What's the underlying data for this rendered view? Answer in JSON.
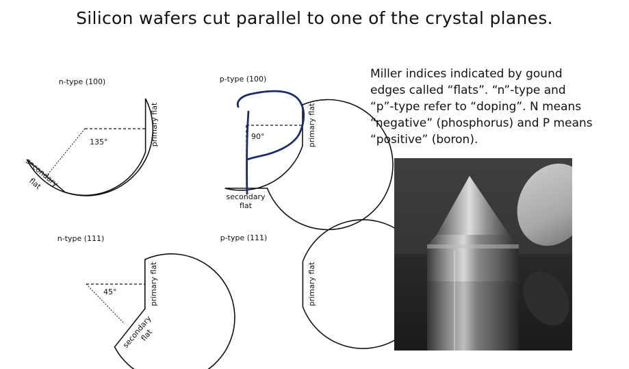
{
  "slide": {
    "title": "Silicon wafers cut parallel to one of the crystal planes.",
    "description": [
      "Miller indices indicated by gound",
      "edges called “flats”.  “n”-type and",
      "“p”-type refer to “doping”. N means",
      "“negative” (phosphorus) and P means",
      "“positive” (boron)."
    ]
  },
  "wafers": [
    {
      "label": "n-type (100)",
      "primary_flat": "primary flat",
      "secondary_flat": [
        "secondary",
        "flat"
      ],
      "angle": "135°"
    },
    {
      "label": "p-type (100)",
      "primary_flat": "primary flat",
      "secondary_flat": [
        "secondary",
        "flat"
      ],
      "angle": "90°"
    },
    {
      "label": "n-type (111)",
      "primary_flat": "primary flat",
      "secondary_flat": [
        "secondary",
        "flat"
      ],
      "angle": "45°"
    },
    {
      "label": "p-type (111)",
      "primary_flat": "primary flat"
    }
  ],
  "colors": {
    "annotation_ink": "#1a2a6b",
    "outline": "#111111"
  }
}
